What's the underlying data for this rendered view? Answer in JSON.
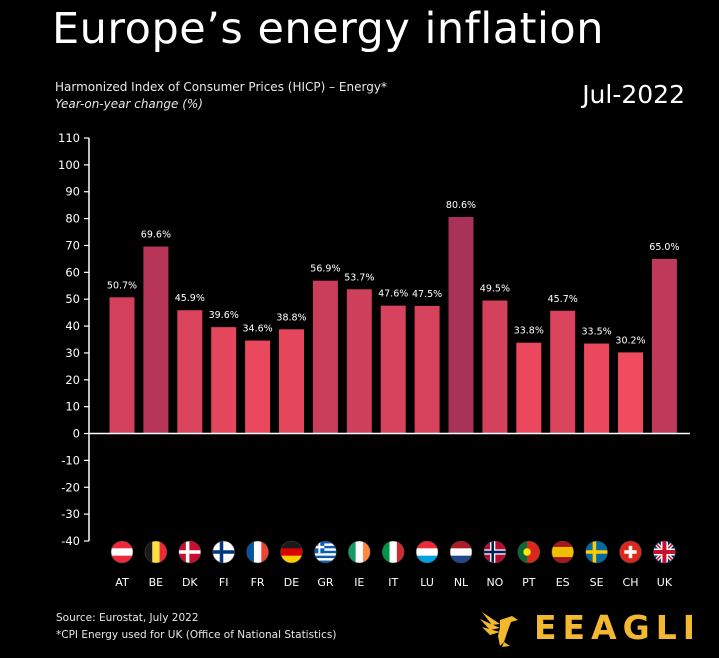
{
  "header": {
    "title": "Europe’s energy inflation",
    "subtitle": "Harmonized Index of Consumer Prices (HICP) – Energy*",
    "subtitle2": "Year-on-year change (%)",
    "date": "Jul-2022"
  },
  "chart_data": {
    "type": "bar",
    "categories": [
      "AT",
      "BE",
      "DK",
      "FI",
      "FR",
      "DE",
      "GR",
      "IE",
      "IT",
      "LU",
      "NL",
      "NO",
      "PT",
      "ES",
      "SE",
      "CH",
      "UK"
    ],
    "values": [
      50.7,
      69.6,
      45.9,
      39.6,
      34.6,
      38.8,
      56.9,
      53.7,
      47.6,
      47.5,
      80.6,
      49.5,
      33.8,
      45.7,
      33.5,
      30.2,
      65.0
    ],
    "value_labels": [
      "50.7%",
      "69.6%",
      "45.9%",
      "39.6%",
      "34.6%",
      "38.8%",
      "56.9%",
      "53.7%",
      "47.6%",
      "47.5%",
      "80.6%",
      "49.5%",
      "33.8%",
      "45.7%",
      "33.5%",
      "30.2%",
      "65.0%"
    ],
    "ylim": [
      -40,
      110
    ],
    "yticks": [
      110,
      100,
      90,
      80,
      70,
      60,
      50,
      40,
      30,
      20,
      10,
      0,
      -10,
      -20,
      -30,
      -40
    ],
    "grid": false,
    "colors": {
      "bar_low": "#f04a5e",
      "bar_high": "#a83258",
      "axis": "#ffffff"
    },
    "flag_icons": [
      "austria-flag-icon",
      "belgium-flag-icon",
      "denmark-flag-icon",
      "finland-flag-icon",
      "france-flag-icon",
      "germany-flag-icon",
      "greece-flag-icon",
      "ireland-flag-icon",
      "italy-flag-icon",
      "luxembourg-flag-icon",
      "netherlands-flag-icon",
      "norway-flag-icon",
      "portugal-flag-icon",
      "spain-flag-icon",
      "sweden-flag-icon",
      "switzerland-flag-icon",
      "uk-flag-icon"
    ]
  },
  "footer": {
    "source": "Source: Eurostat, July 2022",
    "note": "*CPI Energy used for UK (Office of National Statistics)",
    "brand": "EEAGLI",
    "brand_icon": "eagle-logo-icon",
    "brand_color": "#f2b830"
  }
}
